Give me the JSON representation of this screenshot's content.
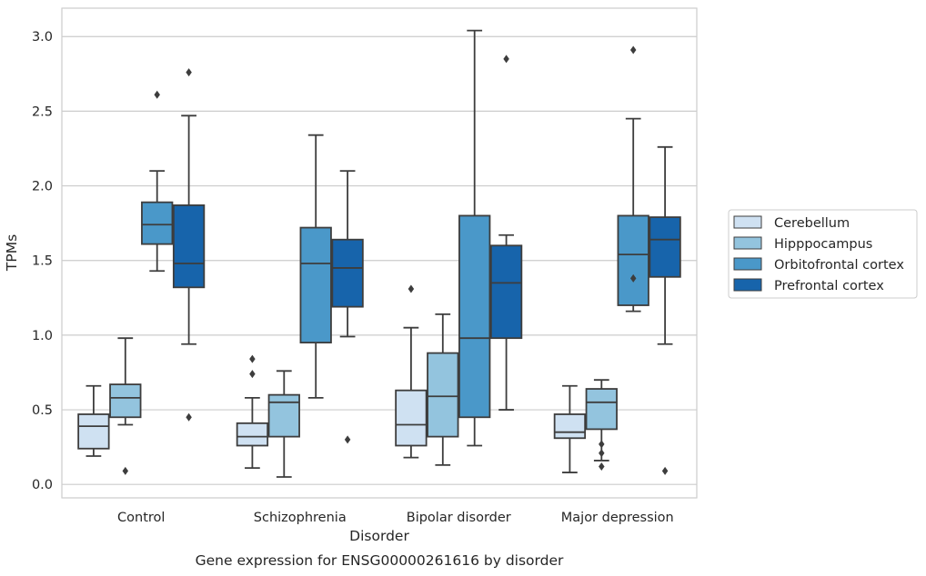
{
  "chart_data": {
    "type": "box",
    "title": "",
    "caption": "Gene expression for ENSG00000261616 by disorder",
    "xlabel": "Disorder",
    "ylabel": "TPMs",
    "ylim": [
      -0.09,
      3.19
    ],
    "yticks": [
      0.0,
      0.5,
      1.0,
      1.5,
      2.0,
      2.5,
      3.0
    ],
    "ytick_labels": [
      "0.0",
      "0.5",
      "1.0",
      "1.5",
      "2.0",
      "2.5",
      "3.0"
    ],
    "grid": "horizontal",
    "legend_position": "right",
    "categories": [
      "Control",
      "Schizophrenia",
      "Bipolar disorder",
      "Major depression"
    ],
    "series": [
      {
        "name": "Cerebellum",
        "color": "#cfe1f2",
        "boxes": [
          {
            "whisker_low": 0.19,
            "q1": 0.24,
            "median": 0.39,
            "q3": 0.47,
            "whisker_high": 0.66,
            "outliers": []
          },
          {
            "whisker_low": 0.11,
            "q1": 0.26,
            "median": 0.32,
            "q3": 0.41,
            "whisker_high": 0.58,
            "outliers": [
              0.84,
              0.74
            ]
          },
          {
            "whisker_low": 0.18,
            "q1": 0.26,
            "median": 0.4,
            "q3": 0.63,
            "whisker_high": 1.05,
            "outliers": [
              1.31
            ]
          },
          {
            "whisker_low": 0.08,
            "q1": 0.31,
            "median": 0.35,
            "q3": 0.47,
            "whisker_high": 0.66,
            "outliers": []
          }
        ]
      },
      {
        "name": "Hipppocampus",
        "color": "#93c4de",
        "boxes": [
          {
            "whisker_low": 0.4,
            "q1": 0.45,
            "median": 0.58,
            "q3": 0.67,
            "whisker_high": 0.98,
            "outliers": [
              0.09
            ]
          },
          {
            "whisker_low": 0.05,
            "q1": 0.32,
            "median": 0.55,
            "q3": 0.6,
            "whisker_high": 0.76,
            "outliers": []
          },
          {
            "whisker_low": 0.13,
            "q1": 0.32,
            "median": 0.59,
            "q3": 0.88,
            "whisker_high": 1.14,
            "outliers": []
          },
          {
            "whisker_low": 0.16,
            "q1": 0.37,
            "median": 0.55,
            "q3": 0.64,
            "whisker_high": 0.7,
            "outliers": [
              0.27,
              0.21,
              0.12
            ]
          }
        ]
      },
      {
        "name": "Orbitofrontal cortex",
        "color": "#4a98c9",
        "boxes": [
          {
            "whisker_low": 1.43,
            "q1": 1.61,
            "median": 1.74,
            "q3": 1.89,
            "whisker_high": 2.1,
            "outliers": [
              2.61
            ]
          },
          {
            "whisker_low": 0.58,
            "q1": 0.95,
            "median": 1.48,
            "q3": 1.72,
            "whisker_high": 2.34,
            "outliers": []
          },
          {
            "whisker_low": 0.26,
            "q1": 0.45,
            "median": 0.98,
            "q3": 1.8,
            "whisker_high": 3.04,
            "outliers": []
          },
          {
            "whisker_low": 1.16,
            "q1": 1.2,
            "median": 1.54,
            "q3": 1.8,
            "whisker_high": 2.45,
            "outliers": [
              1.38,
              2.91
            ]
          }
        ]
      },
      {
        "name": "Prefrontal cortex",
        "color": "#1764ab",
        "boxes": [
          {
            "whisker_low": 0.94,
            "q1": 1.32,
            "median": 1.48,
            "q3": 1.87,
            "whisker_high": 2.47,
            "outliers": [
              2.76,
              0.45
            ]
          },
          {
            "whisker_low": 0.99,
            "q1": 1.19,
            "median": 1.45,
            "q3": 1.64,
            "whisker_high": 2.1,
            "outliers": [
              0.3
            ]
          },
          {
            "whisker_low": 0.5,
            "q1": 0.98,
            "median": 1.35,
            "q3": 1.6,
            "whisker_high": 1.67,
            "outliers": [
              2.85
            ]
          },
          {
            "whisker_low": 0.94,
            "q1": 1.39,
            "median": 1.64,
            "q3": 1.79,
            "whisker_high": 2.26,
            "outliers": [
              0.09
            ]
          }
        ]
      }
    ]
  }
}
